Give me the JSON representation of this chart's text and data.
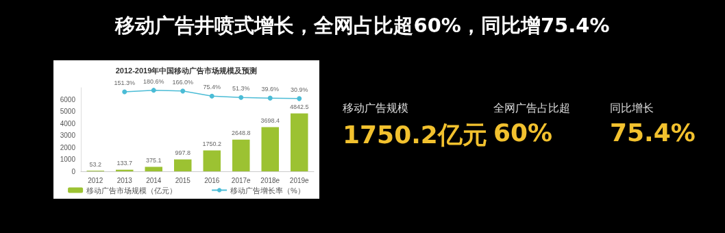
{
  "chart_data": {
    "type": "bar",
    "title": "移动广告井喷式增长，全网占比超60%，同比增75.4%",
    "subtitle": "2012-2019年中国移动广告市场规模及预测",
    "categories": [
      "2012",
      "2013",
      "2014",
      "2015",
      "2016",
      "2017e",
      "2018e",
      "2019e"
    ],
    "series": [
      {
        "name": "移动广告市场规模（亿元）",
        "color": "#9cc232",
        "values": [
          53.2,
          133.7,
          375.1,
          997.8,
          1750.2,
          2648.8,
          3698.4,
          4842.5
        ]
      },
      {
        "name": "移动广告增长率（%）",
        "type": "line",
        "axis": "y2",
        "color": "#4bbcd6",
        "marker": "circle",
        "values": [
          null,
          151.3,
          180.6,
          166.0,
          75.4,
          51.3,
          39.6,
          30.9
        ],
        "value_labels": [
          null,
          "151.3%",
          "180.6%",
          "166.0%",
          "75.4%",
          "51.3%",
          "39.6%",
          "30.9%"
        ]
      }
    ],
    "ylim": [
      0,
      7000
    ],
    "yticks": [
      0,
      1000,
      2000,
      3000,
      4000,
      5000,
      6000
    ],
    "data_labels": true,
    "legend": "bottom",
    "annotations": [
      "移动广告规模",
      "1750.2亿元",
      "全网广告占比超",
      "60%",
      "同比增长",
      "75.4%"
    ]
  }
}
